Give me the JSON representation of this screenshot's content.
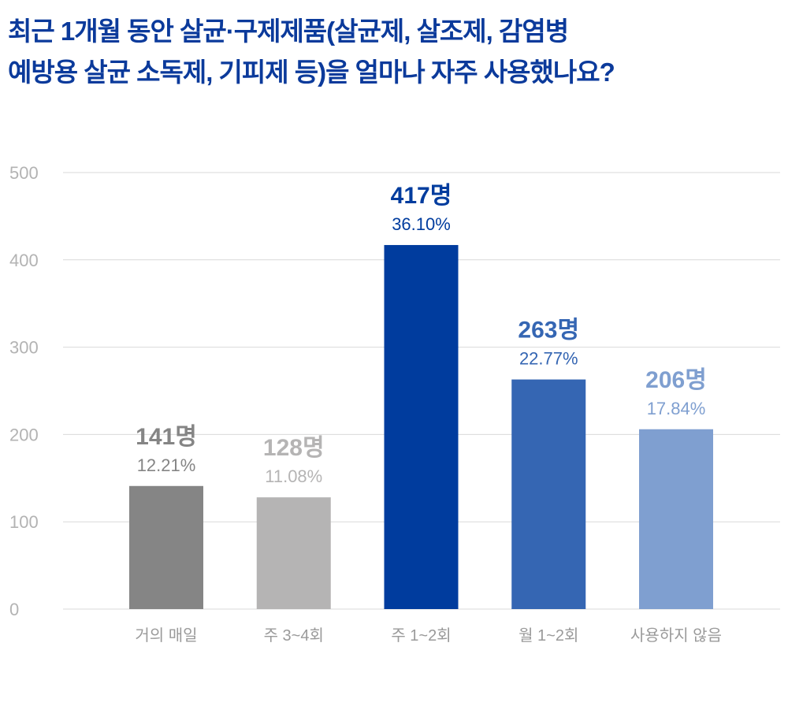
{
  "title": {
    "line1": "최근 1개월 동안 살균·구제제품(살균제, 살조제, 감염병",
    "line2": "예방용 살균 소독제, 기피제 등)을 얼마나 자주 사용했나요?"
  },
  "chart_data": {
    "type": "bar",
    "title": "최근 1개월 동안 살균·구제제품(살균제, 살조제, 감염병 예방용 살균 소독제, 기피제 등)을 얼마나 자주 사용했나요?",
    "categories": [
      "거의 매일",
      "주 3~4회",
      "주 1~2회",
      "월 1~2회",
      "사용하지 않음"
    ],
    "values": [
      141,
      128,
      417,
      263,
      206
    ],
    "count_labels": [
      "141명",
      "128명",
      "417명",
      "263명",
      "206명"
    ],
    "percent_labels": [
      "12.21%",
      "11.08%",
      "36.10%",
      "22.77%",
      "17.84%"
    ],
    "colors": [
      "#858585",
      "#b5b4b4",
      "#003c9e",
      "#3566b3",
      "#7f9fd0"
    ],
    "label_colors": [
      "#858585",
      "#b5b4b4",
      "#003c9e",
      "#3566b3",
      "#7f9fd0"
    ],
    "yticks": [
      "0",
      "100",
      "200",
      "300",
      "400",
      "500"
    ],
    "ytick_values": [
      0,
      100,
      200,
      300,
      400,
      500
    ],
    "ylim": [
      0,
      500
    ],
    "xlabel": "",
    "ylabel": "",
    "grid": true,
    "legend": "none"
  }
}
